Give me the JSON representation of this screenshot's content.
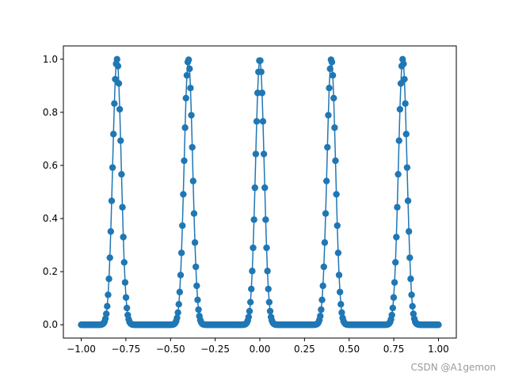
{
  "chart_data": {
    "type": "line",
    "title": "",
    "xlabel": "",
    "ylabel": "",
    "xlim": [
      -1.1,
      1.1
    ],
    "ylim": [
      -0.05,
      1.05
    ],
    "x_ticks": [
      -1.0,
      -0.75,
      -0.5,
      -0.25,
      0.0,
      0.25,
      0.5,
      0.75,
      1.0
    ],
    "x_tick_labels": [
      "−1.00",
      "−0.75",
      "−0.50",
      "−0.25",
      "0.00",
      "0.25",
      "0.50",
      "0.75",
      "1.00"
    ],
    "y_ticks": [
      0.0,
      0.2,
      0.4,
      0.6,
      0.8,
      1.0
    ],
    "y_tick_labels": [
      "0.0",
      "0.2",
      "0.4",
      "0.6",
      "0.8",
      "1.0"
    ],
    "grid": false,
    "legend": "none",
    "marker": "circle",
    "line_color": "#1f77b4",
    "series": [
      {
        "peak_centers": [
          -0.8,
          -0.4,
          0.0,
          0.4,
          0.8
        ],
        "peak_value": 1.0,
        "baseline": 0.0,
        "x_range": [
          -1.0,
          1.0
        ],
        "point_count": 400
      }
    ]
  },
  "watermark": "CSDN @A1gemon"
}
